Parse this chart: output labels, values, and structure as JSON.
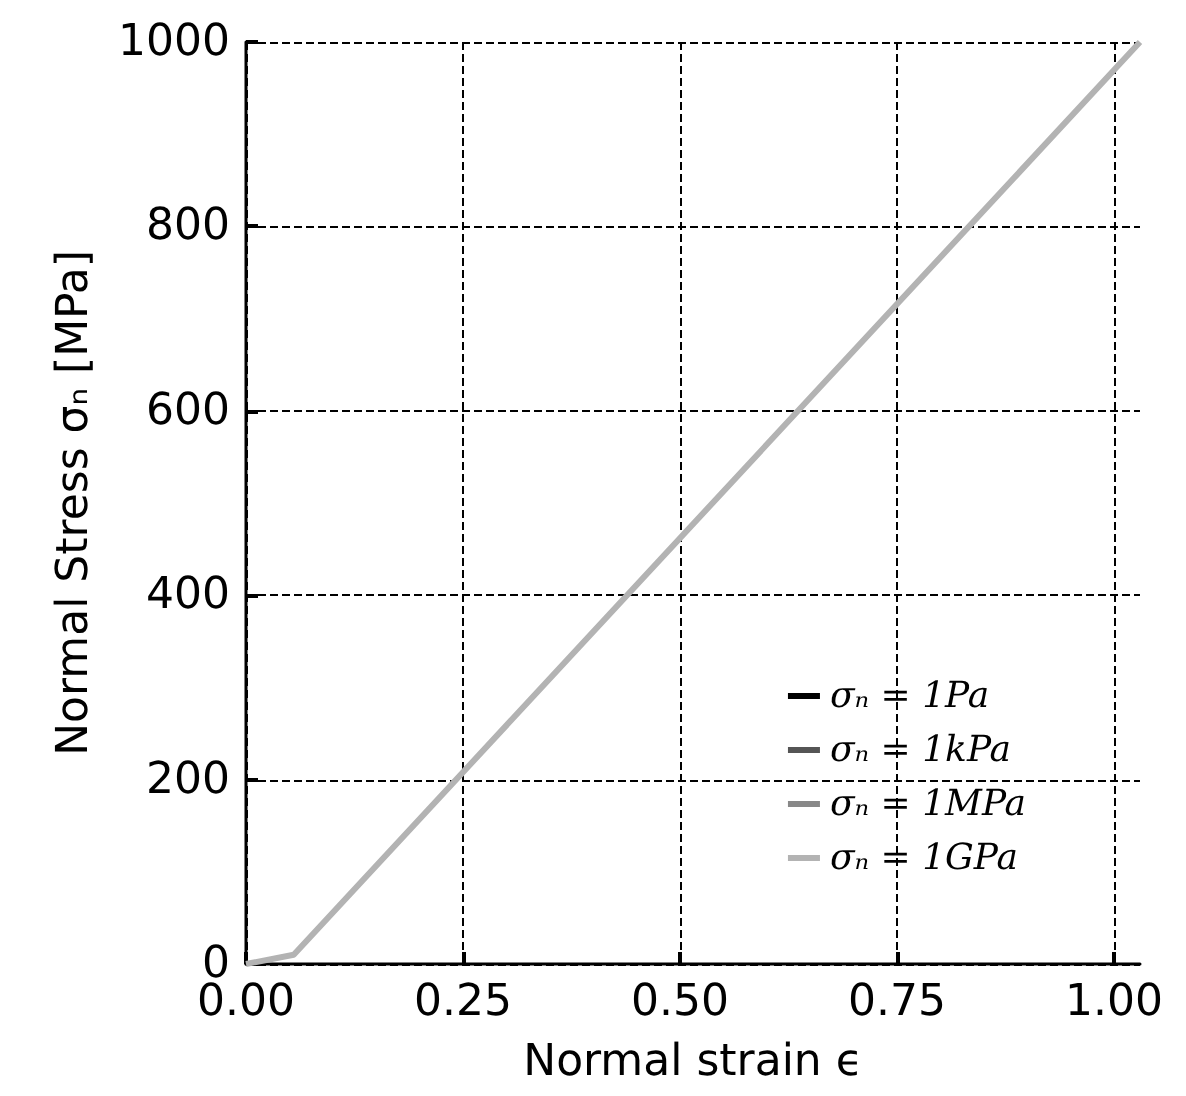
{
  "chart_data": {
    "type": "line",
    "xlabel": "Normal strain ϵ",
    "ylabel": "Normal Stress σₙ [MPa]",
    "xlim": [
      0,
      1.03
    ],
    "xticks": [
      {
        "value": 0,
        "label": "0.00"
      },
      {
        "value": 0.25,
        "label": "0.25"
      },
      {
        "value": 0.5,
        "label": "0.50"
      },
      {
        "value": 0.75,
        "label": "0.75"
      },
      {
        "value": 1,
        "label": "1.00"
      }
    ],
    "ylim": [
      0,
      1000
    ],
    "yticks": [
      0,
      200,
      400,
      600,
      800,
      1000
    ],
    "grid": true,
    "legend": "bottom right",
    "marker": "none",
    "line_style": "solid",
    "series": [
      {
        "name": "σₙ = 1Pa",
        "color": "#000000"
      },
      {
        "name": "σₙ = 1kPa",
        "color": "#555555"
      },
      {
        "name": "σₙ = 1MPa",
        "color": "#888888"
      },
      {
        "name": "σₙ = 1GPa",
        "color": "#b3b3b3",
        "x": [
          0,
          0.055,
          1.03
        ],
        "values": [
          0,
          10,
          1000
        ]
      }
    ]
  }
}
